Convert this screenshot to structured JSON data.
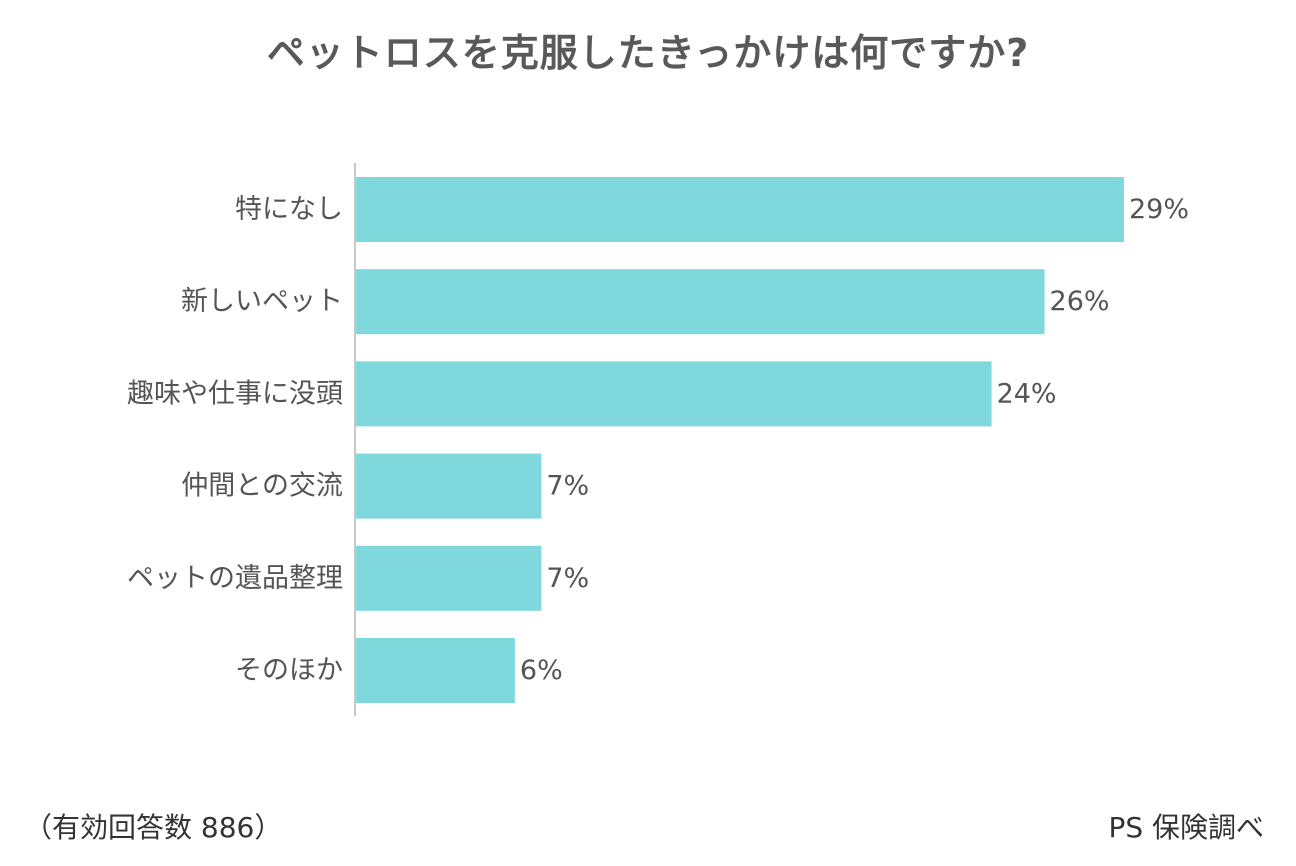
{
  "chart_data": {
    "type": "bar",
    "orientation": "horizontal",
    "title": "ペットロスを克服したきっかけは何ですか?",
    "categories": [
      "特になし",
      "新しいペット",
      "趣味や仕事に没頭",
      "仲間との交流",
      "ペットの遺品整理",
      "そのほか"
    ],
    "values": [
      29,
      26,
      24,
      7,
      7,
      6
    ],
    "value_labels": [
      "29%",
      "26%",
      "24%",
      "7%",
      "7%",
      "6%"
    ],
    "unit": "%",
    "xlim": [
      0,
      32
    ],
    "grid": false,
    "bar_color": "#7fd8dc",
    "axis_color": "#c8c8c8"
  },
  "footer": {
    "note": "（有効回答数 886）",
    "source": "PS 保険調べ"
  }
}
